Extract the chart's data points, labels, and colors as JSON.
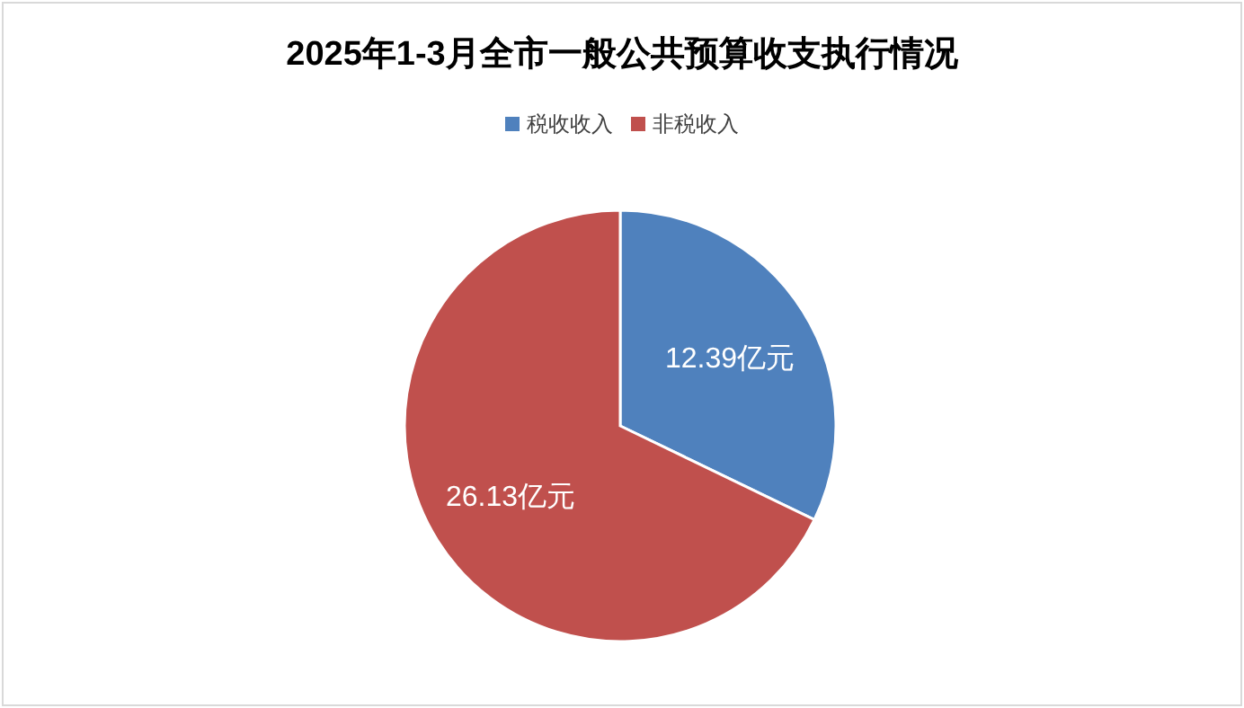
{
  "chart_data": {
    "type": "pie",
    "title": "2025年1-3月全市一般公共预算收支执行情况",
    "categories": [
      "税收收入",
      "非税收入"
    ],
    "values": [
      12.39,
      26.13
    ],
    "colors": [
      "#4f81bd",
      "#c0504d"
    ],
    "value_labels": [
      "12.39亿元",
      "26.13亿元"
    ],
    "legend": "top"
  }
}
